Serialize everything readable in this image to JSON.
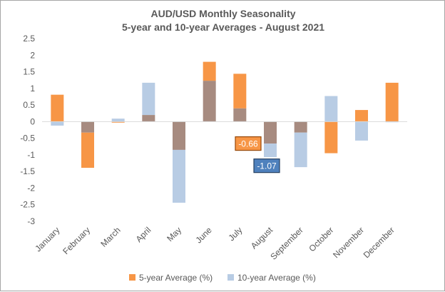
{
  "chart_data": {
    "type": "bar",
    "title": "AUD/USD Monthly  Seasonality",
    "subtitle": "5-year and 10-year Averages - August 2021",
    "categories": [
      "January",
      "February",
      "March",
      "April",
      "May",
      "June",
      "July",
      "August",
      "September",
      "October",
      "November",
      "December"
    ],
    "series": [
      {
        "name": "5-year Average (%)",
        "color": "#f79646",
        "values": [
          0.81,
          -1.39,
          -0.03,
          0.2,
          -0.85,
          1.8,
          1.44,
          -0.66,
          -0.33,
          -0.95,
          0.35,
          1.17
        ]
      },
      {
        "name": "10-year Average (%)",
        "color": "#b8cce4",
        "values": [
          -0.12,
          -0.33,
          0.09,
          1.17,
          -2.44,
          1.23,
          0.4,
          -1.07,
          -1.37,
          0.77,
          -0.57,
          -0.02
        ]
      }
    ],
    "overlap_color": "#a78b80",
    "ylim": [
      -3,
      2.5
    ],
    "yticks": [
      "2.5",
      "2",
      "1.5",
      "1",
      "0.5",
      "0",
      "-0.5",
      "-1",
      "-1.5",
      "-2",
      "-2.5",
      "-3"
    ],
    "ytick_values": [
      2.5,
      2,
      1.5,
      1,
      0.5,
      0,
      -0.5,
      -1,
      -1.5,
      -2,
      -2.5,
      -3
    ],
    "gridlines": false,
    "legend_position": "bottom",
    "data_labels": [
      {
        "text": "-0.66",
        "category": "August",
        "series": "5-year Average (%)",
        "value": -0.66,
        "bg": "#f79646",
        "border": "#974706"
      },
      {
        "text": "-1.07",
        "category": "August",
        "series": "10-year Average (%)",
        "value": -1.07,
        "bg": "#4f81bd",
        "border": "#243f60"
      }
    ]
  }
}
